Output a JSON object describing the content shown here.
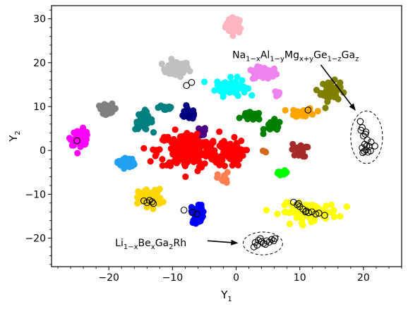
{
  "chart_data": {
    "type": "scatter",
    "xlabel": "Y",
    "xlabel_sub": "1",
    "ylabel": "Y",
    "ylabel_sub": "2",
    "xlim": [
      -29,
      26
    ],
    "ylim": [
      -26.5,
      33
    ],
    "xticks": [
      -20,
      -10,
      0,
      10,
      20
    ],
    "xtick_labels": [
      "−20",
      "−10",
      "0",
      "10",
      "20"
    ],
    "yticks": [
      -20,
      -10,
      0,
      10,
      20,
      30
    ],
    "ytick_labels": [
      "−20",
      "−10",
      "0",
      "10",
      "20",
      "30"
    ],
    "grid": false,
    "clusters": [
      {
        "color": "#ffb6c1",
        "cx": -0.3,
        "cy": 28.5,
        "sx": 0.9,
        "sy": 1.2,
        "n": 40
      },
      {
        "color": "#c0c0c0",
        "cx": -9.5,
        "cy": 18.6,
        "sx": 1.4,
        "sy": 1.2,
        "n": 45
      },
      {
        "color": "#ee82ee",
        "cx": 4.5,
        "cy": 17.5,
        "sx": 1.3,
        "sy": 1.0,
        "n": 45
      },
      {
        "color": "#ee82ee",
        "cx": 6.3,
        "cy": 13.0,
        "sx": 0.5,
        "sy": 0.5,
        "n": 10
      },
      {
        "color": "#00ffff",
        "cx": -0.8,
        "cy": 14.5,
        "sx": 1.6,
        "sy": 1.3,
        "n": 70
      },
      {
        "color": "#808000",
        "cx": 14.8,
        "cy": 13.5,
        "sx": 1.0,
        "sy": 1.5,
        "n": 55
      },
      {
        "color": "#808080",
        "cx": -20.2,
        "cy": 9.5,
        "sx": 1.0,
        "sy": 0.7,
        "n": 35
      },
      {
        "color": "#008080",
        "cx": -14.5,
        "cy": 6.8,
        "sx": 0.9,
        "sy": 1.4,
        "n": 40
      },
      {
        "color": "#008080",
        "cx": -11.0,
        "cy": 9.8,
        "sx": 0.8,
        "sy": 0.6,
        "n": 20
      },
      {
        "color": "#000080",
        "cx": -7.5,
        "cy": 8.3,
        "sx": 1.0,
        "sy": 0.8,
        "n": 22
      },
      {
        "color": "#4b0082",
        "cx": -5.5,
        "cy": 4.0,
        "sx": 0.5,
        "sy": 0.9,
        "n": 14
      },
      {
        "color": "#008000",
        "cx": 2.5,
        "cy": 7.8,
        "sx": 1.0,
        "sy": 0.6,
        "n": 28
      },
      {
        "color": "#008000",
        "cx": 5.8,
        "cy": 5.5,
        "sx": 0.9,
        "sy": 0.9,
        "n": 25
      },
      {
        "color": "#ffa500",
        "cx": 10.5,
        "cy": 8.6,
        "sx": 1.3,
        "sy": 0.7,
        "n": 30
      },
      {
        "color": "#ff00ff",
        "cx": -24.5,
        "cy": 3.0,
        "sx": 1.0,
        "sy": 1.2,
        "n": 45
      },
      {
        "color": "#ff0000",
        "cx": -7.5,
        "cy": 0.0,
        "sx": 3.2,
        "sy": 2.8,
        "n": 190
      },
      {
        "color": "#ff0000",
        "cx": -1.0,
        "cy": -0.5,
        "sx": 1.5,
        "sy": 2.0,
        "n": 60
      },
      {
        "color": "#d2691e",
        "cx": 4.4,
        "cy": -0.3,
        "sx": 0.2,
        "sy": 0.2,
        "n": 3
      },
      {
        "color": "#a52a2a",
        "cx": 9.9,
        "cy": 0.0,
        "sx": 0.8,
        "sy": 1.0,
        "n": 25
      },
      {
        "color": "#1fa0f0",
        "cx": -17.3,
        "cy": -2.8,
        "sx": 0.9,
        "sy": 0.8,
        "n": 30
      },
      {
        "color": "#ff7f50",
        "cx": -2.0,
        "cy": -6.5,
        "sx": 0.6,
        "sy": 1.0,
        "n": 16
      },
      {
        "color": "#00ff00",
        "cx": 7.2,
        "cy": -5.2,
        "sx": 0.7,
        "sy": 0.4,
        "n": 14
      },
      {
        "color": "#ffd700",
        "cx": -13.5,
        "cy": -10.8,
        "sx": 1.2,
        "sy": 1.3,
        "n": 70
      },
      {
        "color": "#0000ff",
        "cx": -6.0,
        "cy": -14.3,
        "sx": 0.7,
        "sy": 1.5,
        "n": 35
      },
      {
        "color": "#ffff00",
        "cx": 11.5,
        "cy": -14.0,
        "sx": 3.0,
        "sy": 1.3,
        "n": 95
      }
    ],
    "open_markers": [
      [
        -25.0,
        2.2
      ],
      [
        -7.8,
        14.8
      ],
      [
        -7.0,
        15.5
      ],
      [
        11.3,
        9.2
      ],
      [
        -14.5,
        -11.5
      ],
      [
        -14.0,
        -11.9
      ],
      [
        -13.6,
        -11.4
      ],
      [
        -13.2,
        -11.7
      ],
      [
        -13.0,
        -12.1
      ],
      [
        -8.2,
        -13.6
      ],
      [
        -6.8,
        -14.1
      ],
      [
        -6.2,
        -14.5
      ],
      [
        9.0,
        -11.8
      ],
      [
        9.6,
        -12.4
      ],
      [
        10.0,
        -12.8
      ],
      [
        10.5,
        -13.4
      ],
      [
        11.0,
        -13.8
      ],
      [
        11.4,
        -14.2
      ],
      [
        11.9,
        -14.0
      ],
      [
        12.5,
        -14.5
      ],
      [
        13.0,
        -14.3
      ],
      [
        13.9,
        -14.8
      ],
      [
        9.8,
        -12.1
      ],
      [
        10.9,
        -14.0
      ],
      [
        19.5,
        6.6
      ],
      [
        19.8,
        5.2
      ],
      [
        20.4,
        4.2
      ],
      [
        20.0,
        3.3
      ],
      [
        20.6,
        2.4
      ],
      [
        20.2,
        1.4
      ],
      [
        21.2,
        1.9
      ],
      [
        19.8,
        0.6
      ],
      [
        20.4,
        0.1
      ],
      [
        21.1,
        -0.1
      ],
      [
        19.9,
        -0.5
      ],
      [
        20.7,
        -0.4
      ],
      [
        21.8,
        1.0
      ],
      [
        20.3,
        3.7
      ],
      [
        19.6,
        4.6
      ],
      [
        20.9,
        0.9
      ],
      [
        20.1,
        -0.2
      ],
      [
        20.5,
        1.0
      ],
      [
        3.0,
        -21.0
      ],
      [
        3.5,
        -20.5
      ],
      [
        4.0,
        -20.8
      ],
      [
        4.3,
        -21.2
      ],
      [
        4.8,
        -20.6
      ],
      [
        5.2,
        -20.9
      ],
      [
        5.6,
        -20.3
      ],
      [
        3.3,
        -21.6
      ],
      [
        4.6,
        -21.4
      ],
      [
        5.9,
        -20.6
      ],
      [
        3.8,
        -20.1
      ],
      [
        6.1,
        -20.1
      ],
      [
        2.8,
        -22.0
      ]
    ],
    "regions": [
      {
        "cx": 20.5,
        "cy": 3.0,
        "rx": 2.5,
        "ry": 6.0
      },
      {
        "cx": 4.2,
        "cy": -21.2,
        "rx": 3.1,
        "ry": 2.6
      }
    ],
    "annotations": [
      {
        "label_parts": [
          {
            "t": "Na",
            "s": false
          },
          {
            "t": "1−x",
            "s": true
          },
          {
            "t": "Al",
            "s": false
          },
          {
            "t": "1−y",
            "s": true
          },
          {
            "t": "Mg",
            "s": false
          },
          {
            "t": "x+y",
            "s": true
          },
          {
            "t": "Ge",
            "s": false
          },
          {
            "t": "1−z",
            "s": true
          },
          {
            "t": "Ga",
            "s": false
          },
          {
            "t": "z",
            "s": true
          }
        ],
        "text_x": -0.6,
        "text_y": 21.0,
        "arrow_from": [
          13.3,
          19.5
        ],
        "arrow_to": [
          18.7,
          9.2
        ]
      },
      {
        "label_parts": [
          {
            "t": "Li",
            "s": false
          },
          {
            "t": "1−x",
            "s": true
          },
          {
            "t": "Be",
            "s": false
          },
          {
            "t": "x",
            "s": true
          },
          {
            "t": "Ga",
            "s": false
          },
          {
            "t": "2",
            "s": true
          },
          {
            "t": "Rh",
            "s": false
          }
        ],
        "text_x": -19.0,
        "text_y": -21.8,
        "arrow_from": [
          -4.5,
          -20.6
        ],
        "arrow_to": [
          0.2,
          -21.1
        ]
      }
    ]
  }
}
